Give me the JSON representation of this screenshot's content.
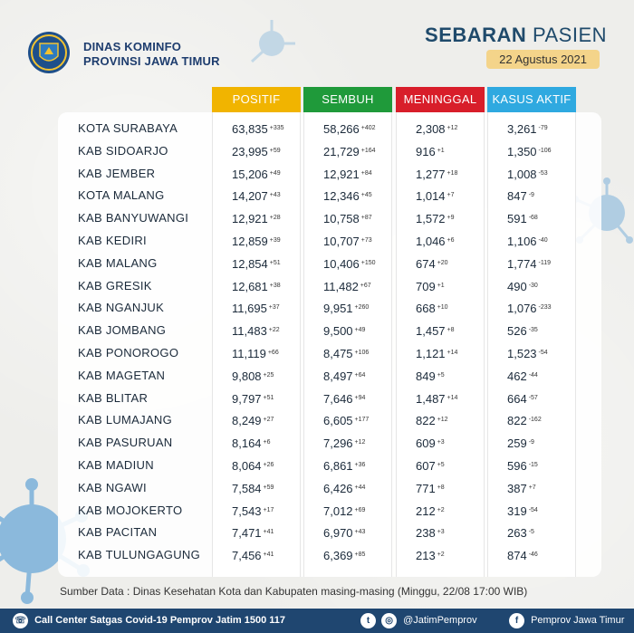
{
  "header": {
    "org_line1": "DINAS KOMINFO",
    "org_line2": "PROVINSI JAWA TIMUR",
    "title_bold": "SEBARAN",
    "title_rest": "PASIEN",
    "date": "22 Agustus 2021"
  },
  "columns": [
    {
      "label": "POSITIF",
      "color": "#f1b400"
    },
    {
      "label": "SEMBUH",
      "color": "#1f9a3a"
    },
    {
      "label": "MENINGGAL",
      "color": "#d81e2a"
    },
    {
      "label": "KASUS AKTIF",
      "color": "#2fa9e0"
    }
  ],
  "rows": [
    {
      "name": "KOTA SURABAYA",
      "positif": "63,835",
      "positif_inc": "+335",
      "sembuh": "58,266",
      "sembuh_inc": "+402",
      "meninggal": "2,308",
      "meninggal_inc": "+12",
      "aktif": "3,261",
      "aktif_inc": "-79"
    },
    {
      "name": "KAB SIDOARJO",
      "positif": "23,995",
      "positif_inc": "+59",
      "sembuh": "21,729",
      "sembuh_inc": "+164",
      "meninggal": "916",
      "meninggal_inc": "+1",
      "aktif": "1,350",
      "aktif_inc": "-106"
    },
    {
      "name": "KAB JEMBER",
      "positif": "15,206",
      "positif_inc": "+49",
      "sembuh": "12,921",
      "sembuh_inc": "+84",
      "meninggal": "1,277",
      "meninggal_inc": "+18",
      "aktif": "1,008",
      "aktif_inc": "-53"
    },
    {
      "name": "KOTA MALANG",
      "positif": "14,207",
      "positif_inc": "+43",
      "sembuh": "12,346",
      "sembuh_inc": "+45",
      "meninggal": "1,014",
      "meninggal_inc": "+7",
      "aktif": "847",
      "aktif_inc": "-9"
    },
    {
      "name": "KAB BANYUWANGI",
      "positif": "12,921",
      "positif_inc": "+28",
      "sembuh": "10,758",
      "sembuh_inc": "+87",
      "meninggal": "1,572",
      "meninggal_inc": "+9",
      "aktif": "591",
      "aktif_inc": "-68"
    },
    {
      "name": "KAB KEDIRI",
      "positif": "12,859",
      "positif_inc": "+39",
      "sembuh": "10,707",
      "sembuh_inc": "+73",
      "meninggal": "1,046",
      "meninggal_inc": "+6",
      "aktif": "1,106",
      "aktif_inc": "-40"
    },
    {
      "name": "KAB MALANG",
      "positif": "12,854",
      "positif_inc": "+51",
      "sembuh": "10,406",
      "sembuh_inc": "+150",
      "meninggal": "674",
      "meninggal_inc": "+20",
      "aktif": "1,774",
      "aktif_inc": "-119"
    },
    {
      "name": "KAB GRESIK",
      "positif": "12,681",
      "positif_inc": "+38",
      "sembuh": "11,482",
      "sembuh_inc": "+67",
      "meninggal": "709",
      "meninggal_inc": "+1",
      "aktif": "490",
      "aktif_inc": "-30"
    },
    {
      "name": "KAB NGANJUK",
      "positif": "11,695",
      "positif_inc": "+37",
      "sembuh": "9,951",
      "sembuh_inc": "+260",
      "meninggal": "668",
      "meninggal_inc": "+10",
      "aktif": "1,076",
      "aktif_inc": "-233"
    },
    {
      "name": "KAB JOMBANG",
      "positif": "11,483",
      "positif_inc": "+22",
      "sembuh": "9,500",
      "sembuh_inc": "+49",
      "meninggal": "1,457",
      "meninggal_inc": "+8",
      "aktif": "526",
      "aktif_inc": "-35"
    },
    {
      "name": "KAB PONOROGO",
      "positif": "11,119",
      "positif_inc": "+66",
      "sembuh": "8,475",
      "sembuh_inc": "+106",
      "meninggal": "1,121",
      "meninggal_inc": "+14",
      "aktif": "1,523",
      "aktif_inc": "-54"
    },
    {
      "name": "KAB MAGETAN",
      "positif": "9,808",
      "positif_inc": "+25",
      "sembuh": "8,497",
      "sembuh_inc": "+64",
      "meninggal": "849",
      "meninggal_inc": "+5",
      "aktif": "462",
      "aktif_inc": "-44"
    },
    {
      "name": "KAB BLITAR",
      "positif": "9,797",
      "positif_inc": "+51",
      "sembuh": "7,646",
      "sembuh_inc": "+94",
      "meninggal": "1,487",
      "meninggal_inc": "+14",
      "aktif": "664",
      "aktif_inc": "-57"
    },
    {
      "name": "KAB LUMAJANG",
      "positif": "8,249",
      "positif_inc": "+27",
      "sembuh": "6,605",
      "sembuh_inc": "+177",
      "meninggal": "822",
      "meninggal_inc": "+12",
      "aktif": "822",
      "aktif_inc": "-162"
    },
    {
      "name": "KAB PASURUAN",
      "positif": "8,164",
      "positif_inc": "+6",
      "sembuh": "7,296",
      "sembuh_inc": "+12",
      "meninggal": "609",
      "meninggal_inc": "+3",
      "aktif": "259",
      "aktif_inc": "-9"
    },
    {
      "name": "KAB MADIUN",
      "positif": "8,064",
      "positif_inc": "+26",
      "sembuh": "6,861",
      "sembuh_inc": "+36",
      "meninggal": "607",
      "meninggal_inc": "+5",
      "aktif": "596",
      "aktif_inc": "-15"
    },
    {
      "name": "KAB NGAWI",
      "positif": "7,584",
      "positif_inc": "+59",
      "sembuh": "6,426",
      "sembuh_inc": "+44",
      "meninggal": "771",
      "meninggal_inc": "+8",
      "aktif": "387",
      "aktif_inc": "+7"
    },
    {
      "name": "KAB MOJOKERTO",
      "positif": "7,543",
      "positif_inc": "+17",
      "sembuh": "7,012",
      "sembuh_inc": "+69",
      "meninggal": "212",
      "meninggal_inc": "+2",
      "aktif": "319",
      "aktif_inc": "-54"
    },
    {
      "name": "KAB PACITAN",
      "positif": "7,471",
      "positif_inc": "+41",
      "sembuh": "6,970",
      "sembuh_inc": "+43",
      "meninggal": "238",
      "meninggal_inc": "+3",
      "aktif": "263",
      "aktif_inc": "-5"
    },
    {
      "name": "KAB TULUNGAGUNG",
      "positif": "7,456",
      "positif_inc": "+41",
      "sembuh": "6,369",
      "sembuh_inc": "+85",
      "meninggal": "213",
      "meninggal_inc": "+2",
      "aktif": "874",
      "aktif_inc": "-46"
    }
  ],
  "source": "Sumber Data : Dinas Kesehatan Kota dan Kabupaten masing-masing (Minggu, 22/08 17:00 WIB)",
  "footer": {
    "call_center": "Call Center Satgas Covid-19 Pemprov Jatim 1500 117",
    "handle": "@JatimPemprov",
    "facebook": "Pemprov Jawa Timur"
  },
  "icons": [
    "phone-icon",
    "twitter-icon",
    "instagram-icon",
    "facebook-icon",
    "virus-icon",
    "logo-emblem"
  ]
}
